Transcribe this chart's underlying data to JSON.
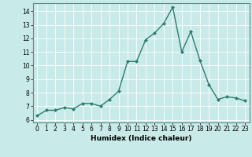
{
  "x": [
    0,
    1,
    2,
    3,
    4,
    5,
    6,
    7,
    8,
    9,
    10,
    11,
    12,
    13,
    14,
    15,
    16,
    17,
    18,
    19,
    20,
    21,
    22,
    23
  ],
  "y": [
    6.3,
    6.7,
    6.7,
    6.9,
    6.8,
    7.2,
    7.2,
    7.0,
    7.5,
    8.1,
    10.3,
    10.3,
    11.9,
    12.4,
    13.1,
    14.3,
    11.0,
    12.5,
    10.4,
    8.6,
    7.5,
    7.7,
    7.6,
    7.4
  ],
  "line_color": "#2e7d6e",
  "marker": "D",
  "marker_size": 2.0,
  "bg_color": "#c8eae8",
  "grid_color": "#ffffff",
  "xlabel": "Humidex (Indice chaleur)",
  "xlim": [
    -0.5,
    23.5
  ],
  "ylim": [
    5.8,
    14.6
  ],
  "yticks": [
    6,
    7,
    8,
    9,
    10,
    11,
    12,
    13,
    14
  ],
  "xticks": [
    0,
    1,
    2,
    3,
    4,
    5,
    6,
    7,
    8,
    9,
    10,
    11,
    12,
    13,
    14,
    15,
    16,
    17,
    18,
    19,
    20,
    21,
    22,
    23
  ],
  "tick_fontsize": 5.5,
  "xlabel_fontsize": 6.5,
  "linewidth": 1.0
}
